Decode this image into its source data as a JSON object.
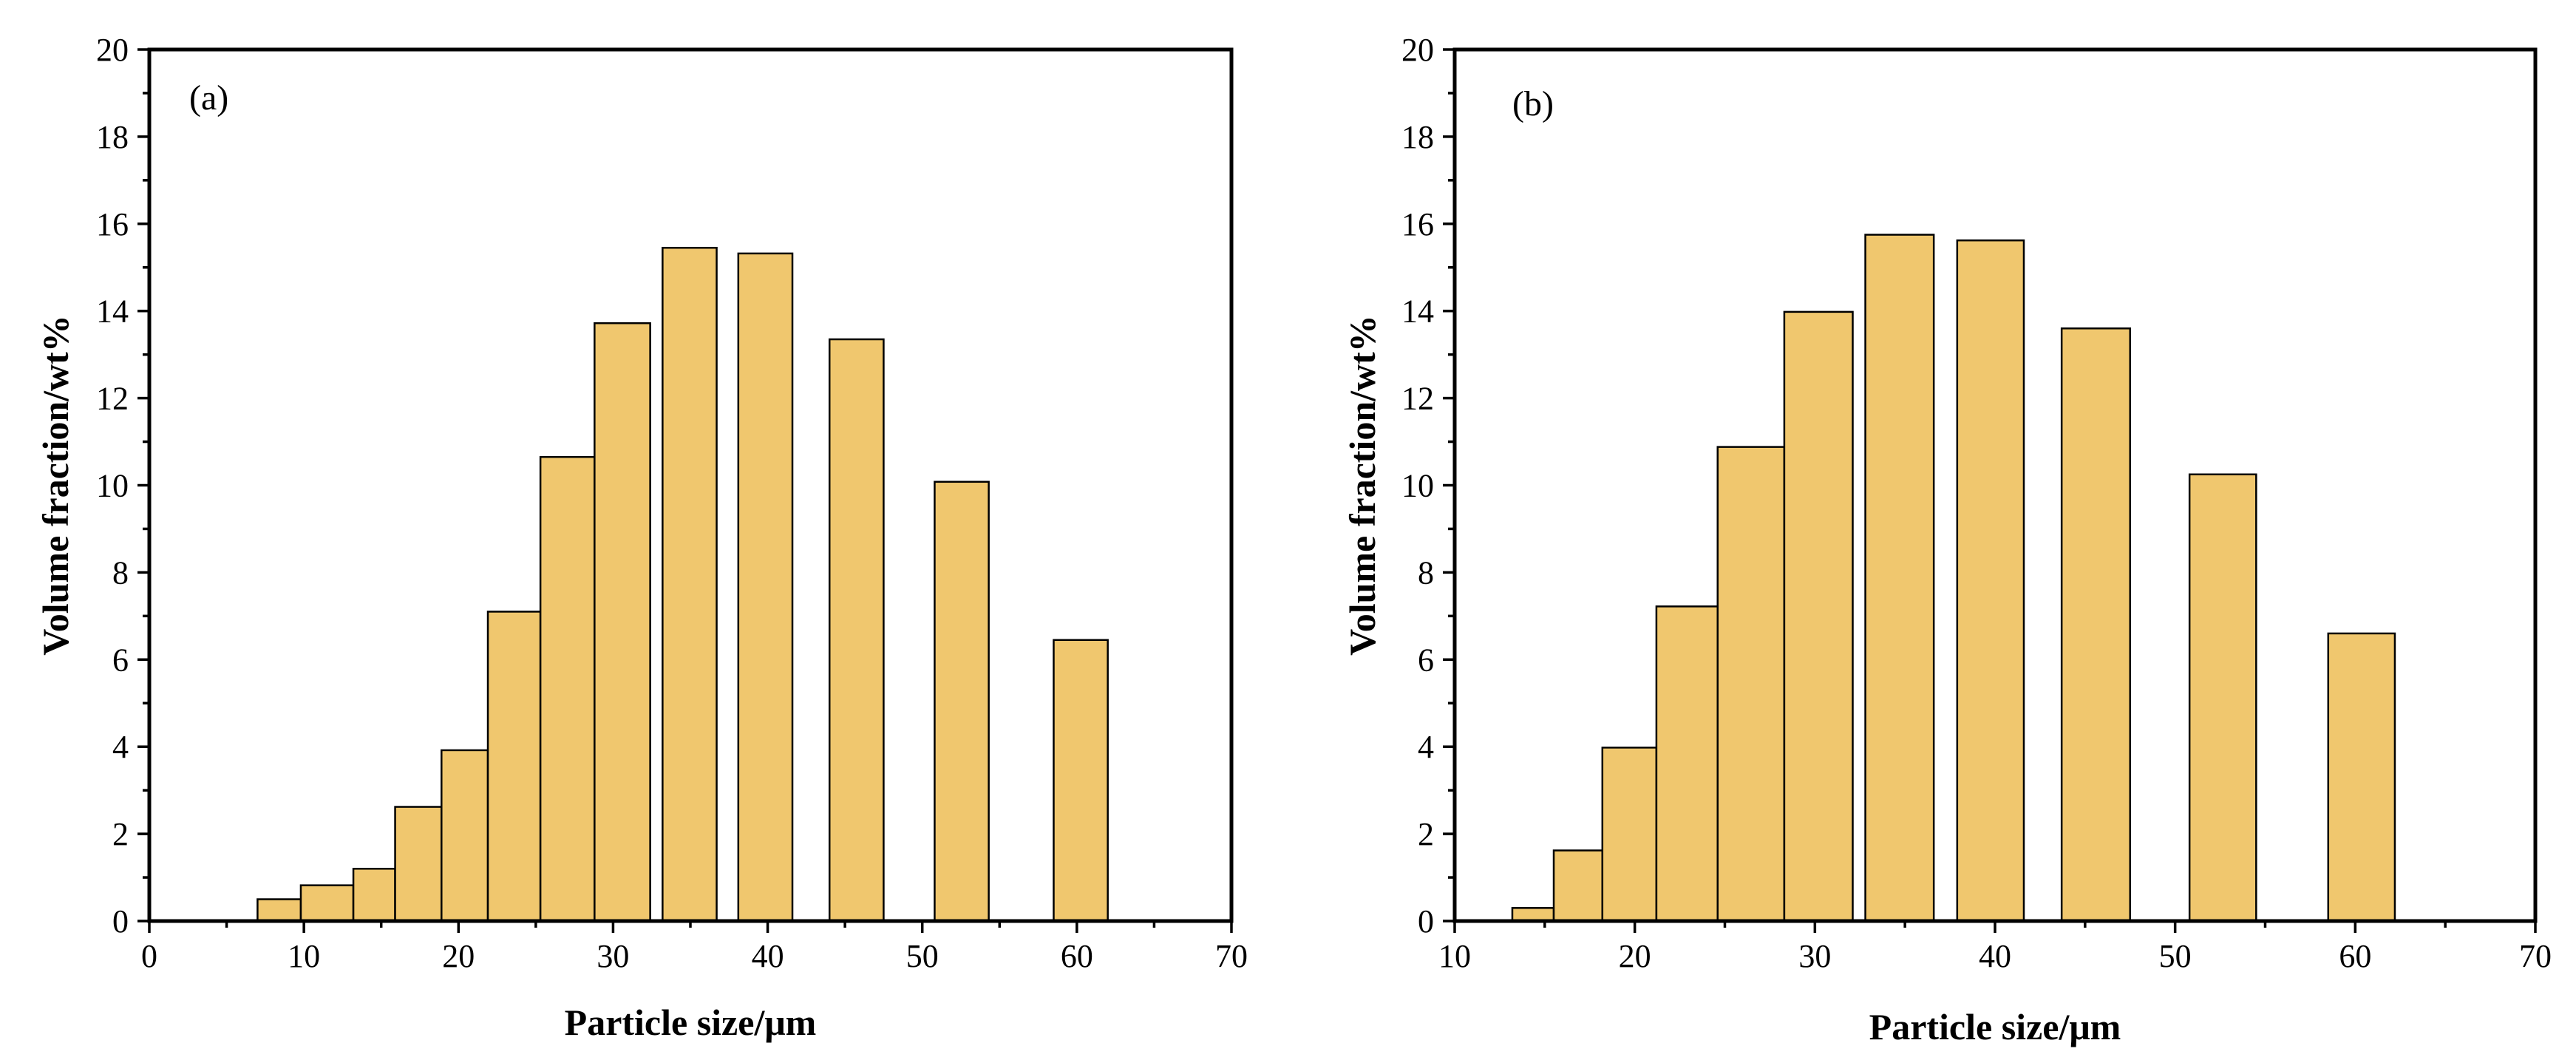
{
  "chart_data": [
    {
      "type": "bar",
      "panel_label": "(a)",
      "xlabel": "Particle size/μm",
      "ylabel": "Volume fraction/wt%",
      "xlim": [
        0,
        70
      ],
      "ylim": [
        0,
        20
      ],
      "xticks": [
        0,
        10,
        20,
        30,
        40,
        50,
        60,
        70
      ],
      "yticks": [
        0,
        2,
        4,
        6,
        8,
        10,
        12,
        14,
        16,
        18,
        20
      ],
      "bar_color": "#F0C76E",
      "bars": [
        {
          "x0": 7.0,
          "x1": 9.8,
          "value": 0.5
        },
        {
          "x0": 9.8,
          "x1": 13.2,
          "value": 0.82
        },
        {
          "x0": 13.2,
          "x1": 15.9,
          "value": 1.2
        },
        {
          "x0": 15.9,
          "x1": 18.9,
          "value": 2.62
        },
        {
          "x0": 18.9,
          "x1": 21.9,
          "value": 3.92
        },
        {
          "x0": 21.9,
          "x1": 25.3,
          "value": 7.1
        },
        {
          "x0": 25.3,
          "x1": 28.8,
          "value": 10.65
        },
        {
          "x0": 28.8,
          "x1": 32.4,
          "value": 13.72
        },
        {
          "x0": 33.2,
          "x1": 36.7,
          "value": 15.45
        },
        {
          "x0": 38.1,
          "x1": 41.6,
          "value": 15.32
        },
        {
          "x0": 44.0,
          "x1": 47.5,
          "value": 13.35
        },
        {
          "x0": 50.8,
          "x1": 54.3,
          "value": 10.08
        },
        {
          "x0": 58.5,
          "x1": 62.0,
          "value": 6.45
        }
      ]
    },
    {
      "type": "bar",
      "panel_label": "(b)",
      "xlabel": "Particle size/μm",
      "ylabel": "Volume fraction/wt%",
      "xlim": [
        10,
        70
      ],
      "ylim": [
        0,
        20
      ],
      "xticks": [
        10,
        20,
        30,
        40,
        50,
        60,
        70
      ],
      "yticks": [
        0,
        2,
        4,
        6,
        8,
        10,
        12,
        14,
        16,
        18,
        20
      ],
      "bar_color": "#F0C76E",
      "bars": [
        {
          "x0": 13.2,
          "x1": 15.5,
          "value": 0.3
        },
        {
          "x0": 15.5,
          "x1": 18.2,
          "value": 1.62
        },
        {
          "x0": 18.2,
          "x1": 21.2,
          "value": 3.98
        },
        {
          "x0": 21.2,
          "x1": 24.6,
          "value": 7.22
        },
        {
          "x0": 24.6,
          "x1": 28.3,
          "value": 10.88
        },
        {
          "x0": 28.3,
          "x1": 32.1,
          "value": 13.98
        },
        {
          "x0": 32.8,
          "x1": 36.6,
          "value": 15.75
        },
        {
          "x0": 37.9,
          "x1": 41.6,
          "value": 15.62
        },
        {
          "x0": 43.7,
          "x1": 47.5,
          "value": 13.6
        },
        {
          "x0": 50.8,
          "x1": 54.5,
          "value": 10.25
        },
        {
          "x0": 58.5,
          "x1": 62.2,
          "value": 6.6
        }
      ]
    }
  ]
}
